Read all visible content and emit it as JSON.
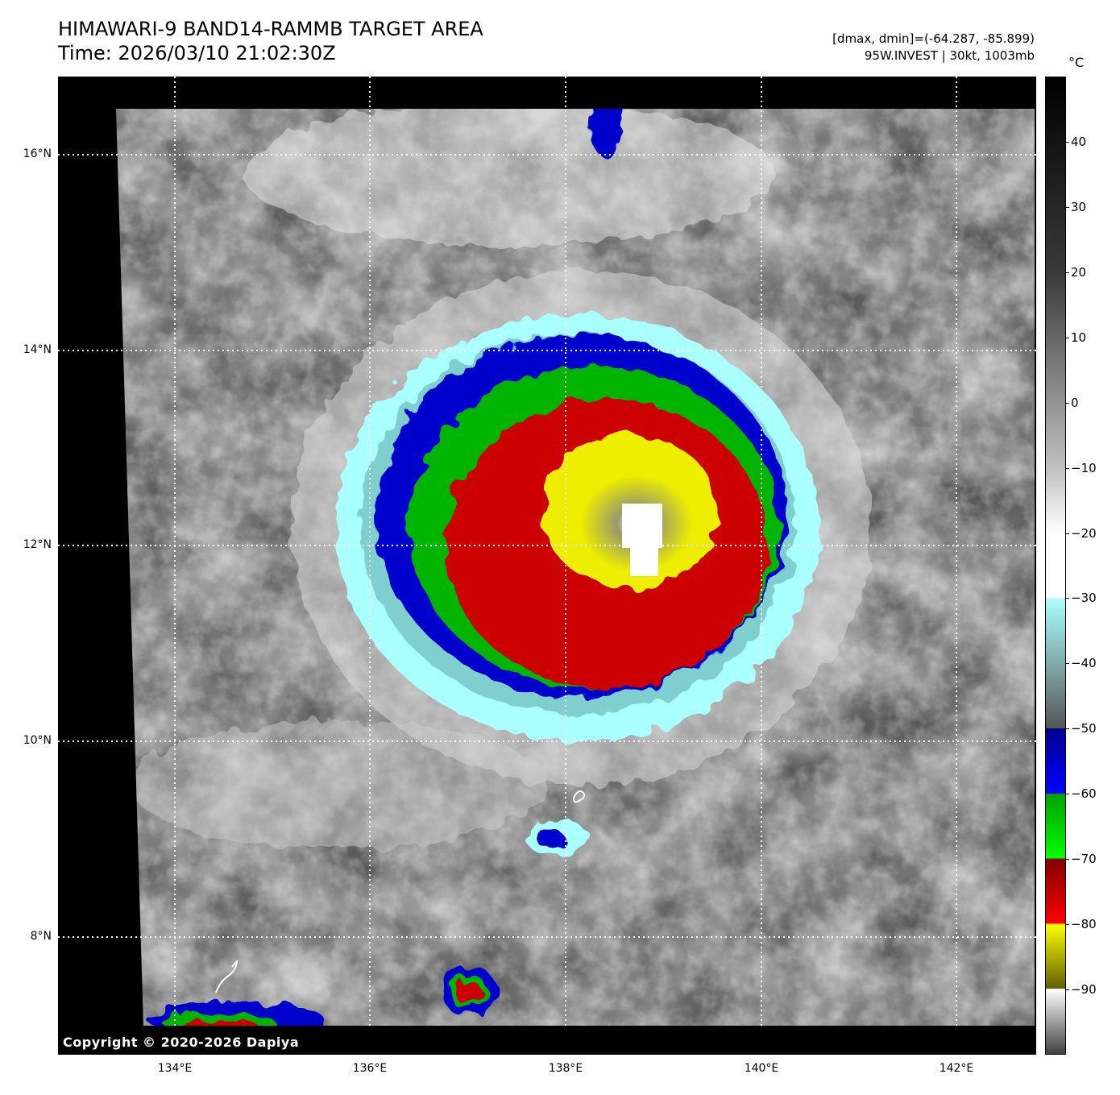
{
  "header": {
    "title_line1": "HIMAWARI-9 BAND14-RAMMB TARGET AREA",
    "title_line2": "Time: 2026/03/10 21:02:30Z",
    "info_line1": "[dmax, dmin]=(-64.287, -85.899)",
    "info_line2": "95W.INVEST | 30kt, 1003mb"
  },
  "map": {
    "copyright": "Copyright © 2020-2026 Dapiya",
    "latitude_labels": [
      "16°N",
      "14°N",
      "12°N",
      "10°N",
      "8°N"
    ],
    "longitude_labels": [
      "134°E",
      "136°E",
      "138°E",
      "140°E",
      "142°E"
    ],
    "extent": {
      "lon_min": 132.8,
      "lon_max": 142.8,
      "lat_min": 6.8,
      "lat_max": 16.8
    },
    "features": {
      "storm": "95W.INVEST",
      "cold_cloud_top_colors": [
        "#0000cc",
        "#00bb00",
        "#cc0000",
        "#eeee00",
        "#ffffff"
      ],
      "background_cloud_color": "#bfbfbf"
    }
  },
  "colorbar": {
    "unit": "°C",
    "labels": [
      "40",
      "30",
      "20",
      "10",
      "0",
      "−10",
      "−20",
      "−30",
      "−40",
      "−50",
      "−60",
      "−70",
      "−80",
      "−90"
    ],
    "range": [
      -100,
      50
    ],
    "stops": [
      {
        "t": 50,
        "color": "#000000"
      },
      {
        "t": 20,
        "color": "#3a3a3a"
      },
      {
        "t": -10,
        "color": "#c0c0c0"
      },
      {
        "t": -20,
        "color": "#ffffff"
      },
      {
        "t": -30,
        "color": "#ffffff"
      },
      {
        "t": -30,
        "color": "#aaffff"
      },
      {
        "t": -50,
        "color": "#555555"
      },
      {
        "t": -50,
        "color": "#00008b"
      },
      {
        "t": -60,
        "color": "#0000ff"
      },
      {
        "t": -60,
        "color": "#00a000"
      },
      {
        "t": -70,
        "color": "#00ff00"
      },
      {
        "t": -70,
        "color": "#800000"
      },
      {
        "t": -80,
        "color": "#ff0000"
      },
      {
        "t": -80,
        "color": "#ffff00"
      },
      {
        "t": -90,
        "color": "#606000"
      },
      {
        "t": -90,
        "color": "#ffffff"
      },
      {
        "t": -100,
        "color": "#404040"
      }
    ]
  }
}
